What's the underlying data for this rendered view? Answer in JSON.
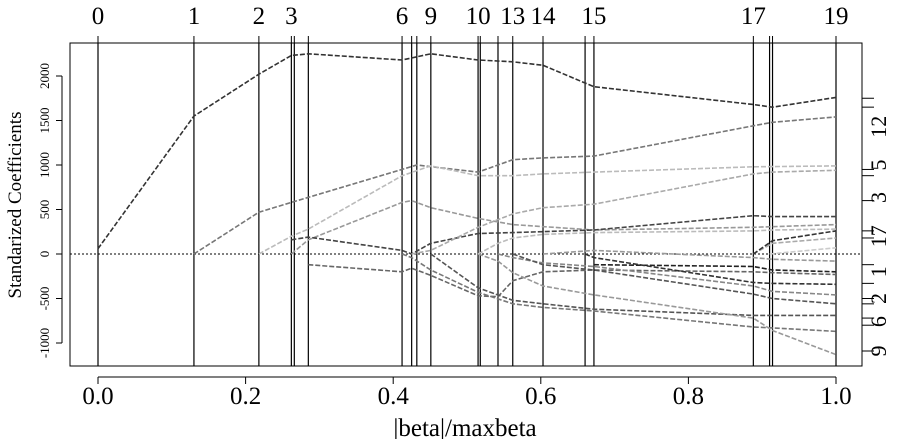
{
  "chart_data": {
    "type": "line",
    "xlabel": "|beta|/maxbeta",
    "ylabel": "Standarized Coefficients",
    "xlim": [
      0.0,
      1.0
    ],
    "ylim": [
      -1200,
      2500
    ],
    "grid": false,
    "x_ticks": [
      0.0,
      0.2,
      0.4,
      0.6,
      0.8,
      1.0
    ],
    "x_tick_labels": [
      "0.0",
      "0.2",
      "0.4",
      "0.6",
      "0.8",
      "1.0"
    ],
    "y_ticks": [
      -1000,
      -500,
      0,
      500,
      1000,
      1500,
      2000
    ],
    "y_tick_labels": [
      "-1000",
      "-500",
      "0",
      "500",
      "1000",
      "1500",
      "2000"
    ],
    "steps": [
      {
        "label": "0",
        "x": 0.0
      },
      {
        "label": "1",
        "x": 0.13
      },
      {
        "label": "2",
        "x": 0.218
      },
      {
        "label": "3",
        "x": 0.262
      },
      {
        "label": "",
        "x": 0.266
      },
      {
        "label": "",
        "x": 0.285
      },
      {
        "label": "6",
        "x": 0.412
      },
      {
        "label": "",
        "x": 0.425
      },
      {
        "label": "",
        "x": 0.432
      },
      {
        "label": "9",
        "x": 0.451
      },
      {
        "label": "10",
        "x": 0.515
      },
      {
        "label": "",
        "x": 0.518
      },
      {
        "label": "",
        "x": 0.542
      },
      {
        "label": "13",
        "x": 0.562
      },
      {
        "label": "14",
        "x": 0.603
      },
      {
        "label": "",
        "x": 0.66
      },
      {
        "label": "15",
        "x": 0.672
      },
      {
        "label": "17",
        "x": 0.888
      },
      {
        "label": "",
        "x": 0.91
      },
      {
        "label": "",
        "x": 0.914
      },
      {
        "label": "19",
        "x": 1.0
      }
    ],
    "right_axis": {
      "ticks": [
        1750,
        1650,
        950,
        880,
        600,
        260,
        180,
        -120,
        -330,
        -500,
        -560,
        -720,
        -800,
        -1090
      ],
      "labels": [
        {
          "text": "12",
          "y": 1430
        },
        {
          "text": "5",
          "y": 1000
        },
        {
          "text": "3",
          "y": 635
        },
        {
          "text": "17",
          "y": 200
        },
        {
          "text": "1",
          "y": -200
        },
        {
          "text": "2",
          "y": -500
        },
        {
          "text": "6",
          "y": -760
        },
        {
          "text": "9",
          "y": -1090
        }
      ]
    },
    "series": [
      {
        "color": "#333333",
        "x": [
          0.0,
          0.13,
          0.218,
          0.262,
          0.285,
          0.412,
          0.451,
          0.515,
          0.562,
          0.603,
          0.672,
          0.888,
          0.914,
          1.0
        ],
        "y": [
          60,
          1550,
          2020,
          2230,
          2250,
          2180,
          2250,
          2180,
          2160,
          2120,
          1880,
          1680,
          1650,
          1760
        ]
      },
      {
        "color": "#777777",
        "x": [
          0.13,
          0.218,
          0.262,
          0.412,
          0.432,
          0.515,
          0.562,
          0.603,
          0.672,
          0.888,
          0.914,
          1.0
        ],
        "y": [
          0,
          470,
          580,
          950,
          1000,
          920,
          1060,
          1080,
          1100,
          1440,
          1480,
          1540
        ]
      },
      {
        "color": "#bbbbbb",
        "x": [
          0.218,
          0.262,
          0.285,
          0.412,
          0.451,
          0.515,
          0.562,
          0.603,
          0.672,
          0.888,
          1.0
        ],
        "y": [
          0,
          200,
          280,
          880,
          990,
          880,
          880,
          900,
          920,
          980,
          990
        ]
      },
      {
        "color": "#999999",
        "x": [
          0.262,
          0.285,
          0.412,
          0.425,
          0.451,
          0.515,
          0.562,
          0.672,
          0.888,
          1.0
        ],
        "y": [
          0,
          160,
          580,
          600,
          520,
          400,
          330,
          270,
          300,
          330
        ]
      },
      {
        "color": "#444444",
        "x": [
          0.262,
          0.285,
          0.412,
          0.425,
          0.451,
          0.515,
          0.562,
          0.672,
          0.888,
          0.914,
          1.0
        ],
        "y": [
          160,
          190,
          40,
          0,
          120,
          230,
          240,
          270,
          430,
          420,
          420
        ]
      },
      {
        "color": "#666666",
        "x": [
          0.285,
          0.412,
          0.425,
          0.451,
          0.515,
          0.542,
          0.562,
          0.603,
          0.672,
          0.888,
          0.914,
          1.0
        ],
        "y": [
          -120,
          -200,
          -160,
          -240,
          -470,
          -480,
          -300,
          -200,
          -180,
          -200,
          -210,
          -230
        ]
      },
      {
        "color": "#777777",
        "x": [
          0.412,
          0.425,
          0.451,
          0.515,
          0.562,
          0.603,
          0.672,
          0.888,
          0.914,
          1.0
        ],
        "y": [
          0,
          -40,
          -180,
          -430,
          -560,
          -600,
          -640,
          -820,
          -830,
          -870
        ]
      },
      {
        "color": "#aaaaaa",
        "x": [
          0.425,
          0.451,
          0.515,
          0.562,
          0.603,
          0.672,
          0.888,
          0.914,
          1.0
        ],
        "y": [
          0,
          40,
          300,
          450,
          520,
          560,
          900,
          920,
          940
        ]
      },
      {
        "color": "#555555",
        "x": [
          0.451,
          0.515,
          0.562,
          0.603,
          0.672,
          0.888,
          0.914,
          1.0
        ],
        "y": [
          0,
          -380,
          -520,
          -560,
          -620,
          -690,
          -690,
          -690
        ]
      },
      {
        "color": "#999999",
        "x": [
          0.515,
          0.542,
          0.562,
          0.603,
          0.672,
          0.888,
          0.914,
          1.0
        ],
        "y": [
          0,
          -80,
          -210,
          -360,
          -460,
          -720,
          -860,
          -1130
        ]
      },
      {
        "color": "#bbbbbb",
        "x": [
          0.515,
          0.542,
          0.562,
          0.603,
          0.672,
          0.888,
          0.914,
          1.0
        ],
        "y": [
          0,
          120,
          180,
          220,
          240,
          260,
          270,
          280
        ]
      },
      {
        "color": "#888888",
        "x": [
          0.542,
          0.562,
          0.603,
          0.672,
          0.888,
          0.914,
          1.0
        ],
        "y": [
          0,
          -40,
          -100,
          -140,
          -360,
          -420,
          -460
        ]
      },
      {
        "color": "#555555",
        "x": [
          0.562,
          0.603,
          0.672,
          0.888,
          0.914,
          1.0
        ],
        "y": [
          0,
          -120,
          -180,
          -450,
          -500,
          -560
        ]
      },
      {
        "color": "#999999",
        "x": [
          0.603,
          0.672,
          0.888,
          0.914,
          1.0
        ],
        "y": [
          0,
          40,
          -40,
          -60,
          -80
        ]
      },
      {
        "color": "#222222",
        "x": [
          0.672,
          0.888,
          0.914,
          1.0
        ],
        "y": [
          -120,
          -140,
          -180,
          -200
        ]
      },
      {
        "color": "#333333",
        "x": [
          0.66,
          0.672,
          0.888,
          0.914,
          1.0
        ],
        "y": [
          0,
          -40,
          -320,
          -330,
          -340
        ]
      },
      {
        "color": "#aaaaaa",
        "x": [
          0.888,
          0.914,
          1.0
        ],
        "y": [
          0,
          120,
          180
        ]
      },
      {
        "color": "#333333",
        "x": [
          0.888,
          0.914,
          1.0
        ],
        "y": [
          0,
          150,
          260
        ]
      },
      {
        "color": "#cccccc",
        "x": [
          0.91,
          1.0
        ],
        "y": [
          0,
          70
        ]
      }
    ]
  }
}
